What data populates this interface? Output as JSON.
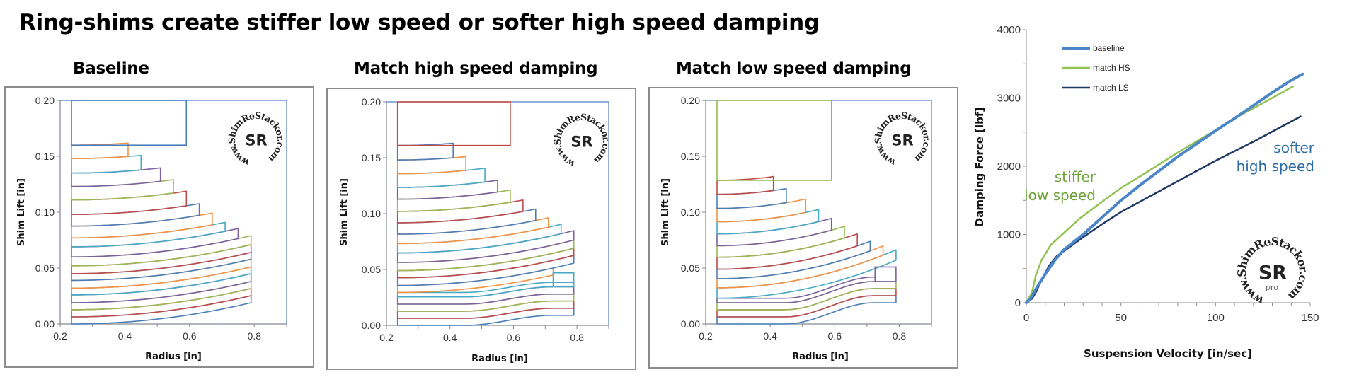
{
  "title": "Ring-shims create stiffer low speed or softer high speed damping",
  "logo_text": "www.ShimReStackor.com",
  "logo_mark": "SR",
  "logo_pro": "pro",
  "shim_palette": [
    "#4a7ebb",
    "#be4b48",
    "#98b954",
    "#7d60a0",
    "#46aac5",
    "#f69240"
  ],
  "chart_data": [
    {
      "type": "line",
      "title": "Baseline",
      "xlabel": "Radius [in]",
      "ylabel": "Shim Lift [in]",
      "xlim": [
        0.2,
        0.9
      ],
      "ylim": [
        0.0,
        0.2
      ],
      "xticks": [
        "0.2",
        "0.4",
        "0.6",
        "0.8"
      ],
      "yticks": [
        "0.00",
        "0.05",
        "0.10",
        "0.15",
        "0.20"
      ],
      "inner_radius": 0.235,
      "deflection": {
        "bend": 0.019,
        "s_curve": 0.0
      },
      "clamp": {
        "radius": 0.59,
        "lift": 0.16
      },
      "shims": [
        {
          "radius": 0.79,
          "lift": 0.0,
          "shape": "bend"
        },
        {
          "radius": 0.79,
          "lift": 0.0063,
          "shape": "bend"
        },
        {
          "radius": 0.79,
          "lift": 0.0127,
          "shape": "bend"
        },
        {
          "radius": 0.79,
          "lift": 0.019,
          "shape": "bend"
        },
        {
          "radius": 0.79,
          "lift": 0.026,
          "shape": "bend"
        },
        {
          "radius": 0.79,
          "lift": 0.032,
          "shape": "bend"
        },
        {
          "radius": 0.79,
          "lift": 0.039,
          "shape": "bend"
        },
        {
          "radius": 0.79,
          "lift": 0.045,
          "shape": "bend"
        },
        {
          "radius": 0.79,
          "lift": 0.052,
          "shape": "bend"
        },
        {
          "radius": 0.75,
          "lift": 0.06,
          "shape": "bend"
        },
        {
          "radius": 0.71,
          "lift": 0.069,
          "shape": "bend"
        },
        {
          "radius": 0.67,
          "lift": 0.077,
          "shape": "bend"
        },
        {
          "radius": 0.63,
          "lift": 0.0876,
          "shape": "bend"
        },
        {
          "radius": 0.59,
          "lift": 0.098,
          "shape": "bend"
        },
        {
          "radius": 0.55,
          "lift": 0.111,
          "shape": "bend"
        },
        {
          "radius": 0.51,
          "lift": 0.123,
          "shape": "bend"
        },
        {
          "radius": 0.45,
          "lift": 0.135,
          "shape": "bend"
        },
        {
          "radius": 0.41,
          "lift": 0.148,
          "shape": "bend"
        }
      ],
      "rings": []
    },
    {
      "type": "line",
      "title": "Match high speed damping",
      "xlabel": "Radius [in]",
      "ylabel": "Shim Lift [in]",
      "xlim": [
        0.2,
        0.9
      ],
      "ylim": [
        0.0,
        0.2
      ],
      "xticks": [
        "0.2",
        "0.4",
        "0.6",
        "0.8"
      ],
      "yticks": [
        "0.00",
        "0.05",
        "0.10",
        "0.15",
        "0.20"
      ],
      "inner_radius": 0.235,
      "deflection": {
        "bend": 0.02,
        "s_curve": 0.009
      },
      "clamp": {
        "radius": 0.59,
        "lift": 0.161
      },
      "shims": [
        {
          "radius": 0.79,
          "lift": 0.0,
          "shape": "s"
        },
        {
          "radius": 0.79,
          "lift": 0.0063,
          "shape": "s"
        },
        {
          "radius": 0.79,
          "lift": 0.0127,
          "shape": "s"
        },
        {
          "radius": 0.79,
          "lift": 0.019,
          "shape": "s"
        },
        {
          "radius": 0.79,
          "lift": 0.0255,
          "shape": "s"
        },
        {
          "radius": 0.725,
          "lift": 0.0295,
          "shape": "bend"
        },
        {
          "radius": 0.79,
          "lift": 0.0357,
          "shape": "bend"
        },
        {
          "radius": 0.79,
          "lift": 0.0426,
          "shape": "bend"
        },
        {
          "radius": 0.79,
          "lift": 0.049,
          "shape": "bend"
        },
        {
          "radius": 0.79,
          "lift": 0.0563,
          "shape": "bend"
        },
        {
          "radius": 0.75,
          "lift": 0.0648,
          "shape": "bend"
        },
        {
          "radius": 0.71,
          "lift": 0.0732,
          "shape": "bend"
        },
        {
          "radius": 0.67,
          "lift": 0.0816,
          "shape": "bend"
        },
        {
          "radius": 0.63,
          "lift": 0.0918,
          "shape": "bend"
        },
        {
          "radius": 0.59,
          "lift": 0.102,
          "shape": "bend"
        },
        {
          "radius": 0.55,
          "lift": 0.1129,
          "shape": "bend"
        },
        {
          "radius": 0.51,
          "lift": 0.1234,
          "shape": "bend"
        },
        {
          "radius": 0.45,
          "lift": 0.1357,
          "shape": "bend"
        },
        {
          "radius": 0.41,
          "lift": 0.148,
          "shape": "bend"
        }
      ],
      "rings": [
        {
          "inner_radius": 0.725,
          "outer_radius": 0.79,
          "lift_bottom": 0.035,
          "lift_top": 0.047,
          "color": "#46aac5"
        }
      ]
    },
    {
      "type": "line",
      "title": "Match low speed damping",
      "xlabel": "Radius [in]",
      "ylabel": "Shim Lift [in]",
      "xlim": [
        0.2,
        0.9
      ],
      "ylim": [
        0.0,
        0.2
      ],
      "xticks": [
        "0.2",
        "0.4",
        "0.6",
        "0.8"
      ],
      "yticks": [
        "0.00",
        "0.05",
        "0.10",
        "0.15",
        "0.20"
      ],
      "inner_radius": 0.235,
      "deflection": {
        "bend": 0.034,
        "s_curve": 0.019
      },
      "clamp": {
        "radius": 0.59,
        "lift": 0.1285
      },
      "shims": [
        {
          "radius": 0.79,
          "lift": 0.0,
          "shape": "s"
        },
        {
          "radius": 0.79,
          "lift": 0.0063,
          "shape": "s"
        },
        {
          "radius": 0.79,
          "lift": 0.0127,
          "shape": "s"
        },
        {
          "radius": 0.725,
          "lift": 0.019,
          "shape": "s"
        },
        {
          "radius": 0.79,
          "lift": 0.023,
          "shape": "bend"
        },
        {
          "radius": 0.75,
          "lift": 0.0323,
          "shape": "bend"
        },
        {
          "radius": 0.71,
          "lift": 0.0405,
          "shape": "bend"
        },
        {
          "radius": 0.67,
          "lift": 0.049,
          "shape": "bend"
        },
        {
          "radius": 0.63,
          "lift": 0.0597,
          "shape": "bend"
        },
        {
          "radius": 0.59,
          "lift": 0.07,
          "shape": "bend"
        },
        {
          "radius": 0.55,
          "lift": 0.0806,
          "shape": "bend"
        },
        {
          "radius": 0.51,
          "lift": 0.0914,
          "shape": "bend"
        },
        {
          "radius": 0.45,
          "lift": 0.1034,
          "shape": "bend"
        },
        {
          "radius": 0.41,
          "lift": 0.116,
          "shape": "bend"
        }
      ],
      "rings": [
        {
          "inner_radius": 0.725,
          "outer_radius": 0.79,
          "lift_bottom": 0.038,
          "lift_top": 0.051,
          "color": "#7d60a0"
        }
      ]
    },
    {
      "type": "line",
      "title": "",
      "xlabel": "Suspension Velocity [in/sec]",
      "ylabel": "Damping Force [lbf]",
      "xlim": [
        0,
        150
      ],
      "ylim": [
        0,
        4000
      ],
      "xticks": [
        "0",
        "50",
        "100",
        "150"
      ],
      "yticks": [
        "0",
        "1000",
        "2000",
        "3000",
        "4000"
      ],
      "legend_position": "top-left",
      "grid": false,
      "series": [
        {
          "name": "baseline",
          "color": "#4a86c8",
          "x": [
            0,
            2,
            5,
            10,
            15,
            20,
            30,
            40,
            50,
            60,
            70,
            80,
            90,
            100,
            110,
            120,
            130,
            140,
            146
          ],
          "y": [
            0,
            50,
            200,
            420,
            620,
            780,
            1000,
            1250,
            1500,
            1720,
            1930,
            2140,
            2330,
            2520,
            2700,
            2890,
            3080,
            3260,
            3350
          ]
        },
        {
          "name": "match HS",
          "color": "#92c353",
          "x": [
            0,
            3,
            5,
            8,
            13,
            17,
            28,
            42,
            50,
            60,
            80,
            100,
            110,
            120,
            130,
            141
          ],
          "y": [
            0,
            150,
            400,
            620,
            850,
            950,
            1230,
            1520,
            1680,
            1850,
            2200,
            2530,
            2700,
            2850,
            3000,
            3170
          ]
        },
        {
          "name": "match LS",
          "color": "#1f3864",
          "x": [
            0,
            3,
            5,
            8,
            12,
            16,
            20,
            30,
            40,
            50,
            60,
            80,
            100,
            120,
            145
          ],
          "y": [
            0,
            60,
            150,
            330,
            540,
            680,
            760,
            960,
            1150,
            1330,
            1480,
            1780,
            2080,
            2360,
            2730
          ]
        }
      ],
      "annotations": [
        {
          "lines": [
            "stiffer",
            "low speed"
          ],
          "color": "#6ea33a"
        },
        {
          "lines": [
            "softer",
            "high speed"
          ],
          "color": "#2e6da4"
        }
      ]
    }
  ]
}
